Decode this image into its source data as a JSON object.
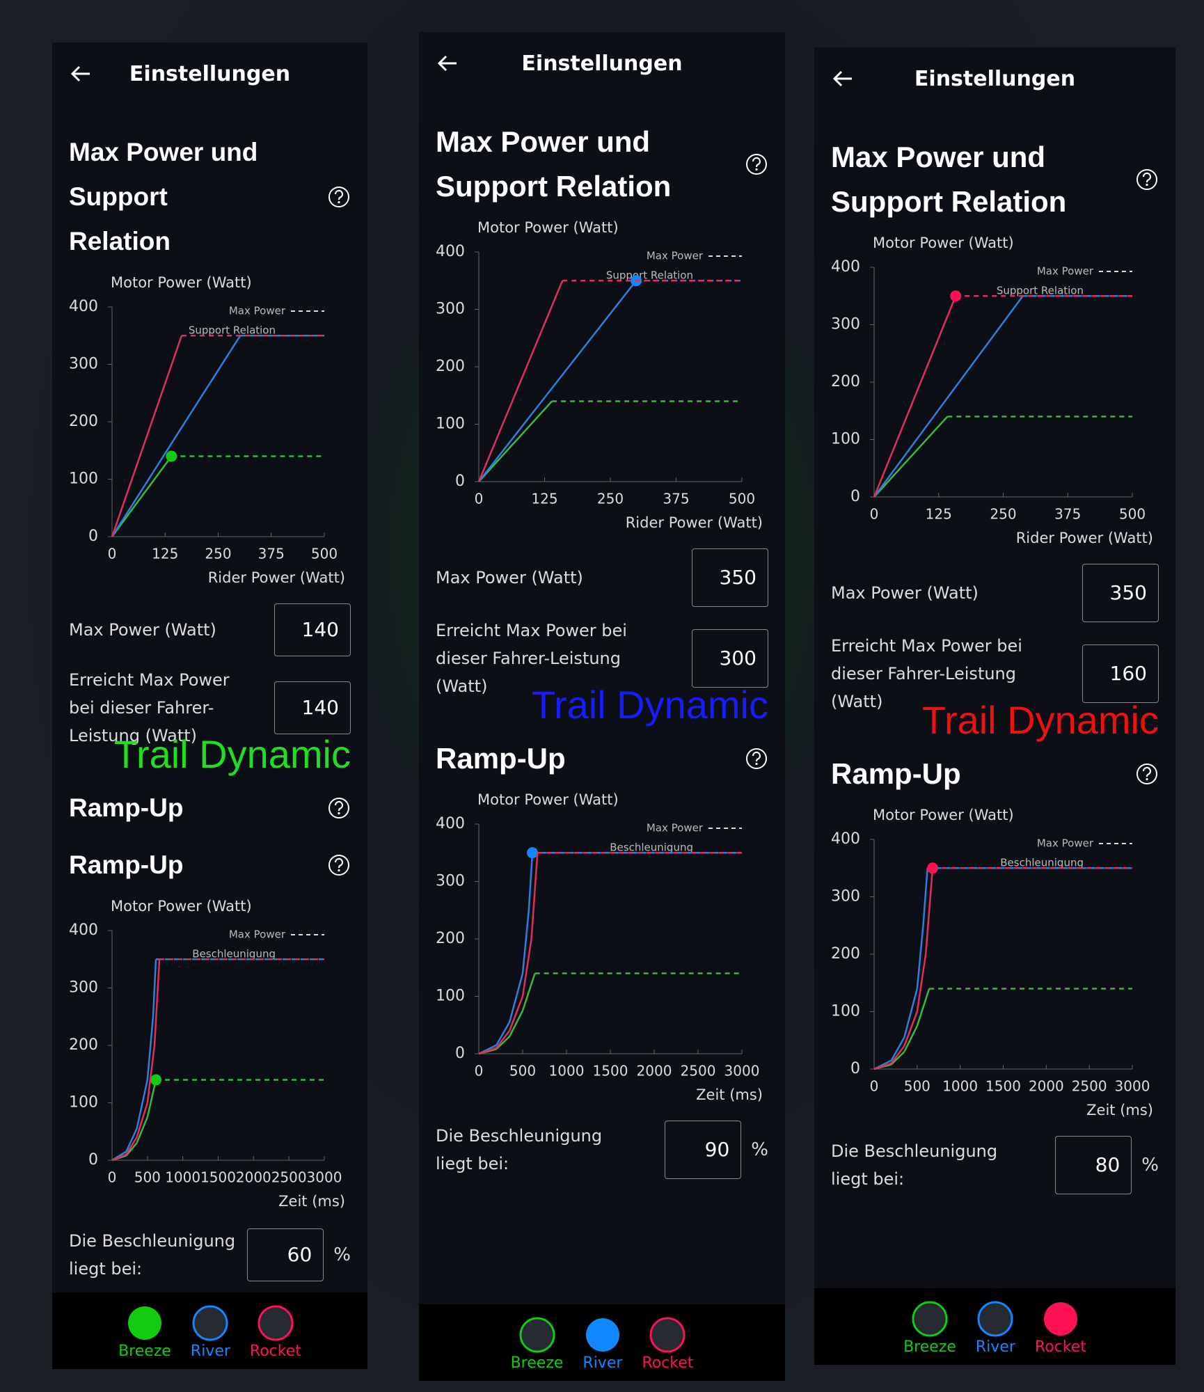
{
  "panels": [
    {
      "header": {
        "title": "Einstellungen"
      },
      "power": {
        "title": "Max Power und Support Relation",
        "chart": {
          "y_label": "Motor Power (Watt)",
          "x_label": "Rider Power (Watt)",
          "yticks": [
            0,
            100,
            200,
            300,
            400
          ],
          "xticks": [
            0,
            125,
            250,
            375,
            500
          ],
          "legend": [
            "Max Power",
            "Support Relation"
          ],
          "series": [
            {
              "color": "#3cb83c",
              "x": [
                0,
                140,
                500
              ],
              "values": [
                0,
                140,
                140
              ]
            },
            {
              "color": "#2f7fe0",
              "x": [
                0,
                302,
                500
              ],
              "values": [
                0,
                350,
                350
              ]
            },
            {
              "color": "#e0305a",
              "x": [
                0,
                164,
                500
              ],
              "values": [
                0,
                350,
                350
              ]
            }
          ]
        },
        "fields": [
          {
            "label": "Max Power (Watt)",
            "value": 140
          },
          {
            "label": "Erreicht Max Power bei dieser Fahrer-Leistung (Watt)",
            "value": 140
          }
        ]
      },
      "overlay": {
        "text": "Trail Dynamic",
        "color": "#22dd22"
      },
      "ramp": {
        "titles": [
          "Ramp-Up",
          "Ramp-Up"
        ],
        "chart": {
          "y_label": "Motor Power (Watt)",
          "x_label": "Zeit (ms)",
          "yticks": [
            0,
            100,
            200,
            300,
            400
          ],
          "xticks": [
            0,
            500,
            1000,
            1500,
            2000,
            2500,
            3000
          ],
          "legend": [
            "Max Power",
            "Beschleunigung"
          ],
          "series": [
            {
              "color": "#3cb83c",
              "x": [
                0,
                200,
                350,
                500,
                620,
                3000
              ],
              "values": [
                0,
                8,
                30,
                75,
                140,
                140
              ]
            },
            {
              "color": "#2f7fe0",
              "x": [
                0,
                200,
                350,
                500,
                580,
                620,
                3000
              ],
              "values": [
                0,
                15,
                55,
                140,
                250,
                350,
                350
              ]
            },
            {
              "color": "#e0305a",
              "x": [
                0,
                200,
                350,
                500,
                600,
                670,
                3000
              ],
              "values": [
                0,
                10,
                40,
                100,
                200,
                350,
                350
              ]
            }
          ]
        },
        "field": {
          "label": "Die Beschleunigung liegt bei:",
          "value": 60,
          "unit": "%"
        }
      },
      "modes": [
        {
          "name": "Breeze",
          "color": "#11cc11"
        },
        {
          "name": "River",
          "color": "#1188ff"
        },
        {
          "name": "Rocket",
          "color": "#ff1155"
        }
      ],
      "selected": 0
    },
    {
      "header": {
        "title": "Einstellungen"
      },
      "power": {
        "title": "Max Power und Support Relation",
        "chart": {
          "y_label": "Motor Power (Watt)",
          "x_label": "Rider Power (Watt)",
          "yticks": [
            0,
            100,
            200,
            300,
            400
          ],
          "xticks": [
            0,
            125,
            250,
            375,
            500
          ],
          "legend": [
            "Max Power",
            "Support Relation"
          ],
          "series": [
            {
              "color": "#3cb83c",
              "x": [
                0,
                139,
                500
              ],
              "values": [
                0,
                140,
                140
              ]
            },
            {
              "color": "#2f7fe0",
              "x": [
                0,
                299,
                500
              ],
              "values": [
                0,
                350,
                350
              ]
            },
            {
              "color": "#e0305a",
              "x": [
                0,
                159,
                500
              ],
              "values": [
                0,
                350,
                350
              ]
            }
          ]
        },
        "fields": [
          {
            "label": "Max Power (Watt)",
            "value": 350
          },
          {
            "label": "Erreicht Max Power bei dieser Fahrer-Leistung (Watt)",
            "value": 300
          }
        ]
      },
      "overlay": {
        "text": "Trail Dynamic",
        "color": "#1a1aff"
      },
      "ramp": {
        "titles": [
          "Ramp-Up"
        ],
        "chart": {
          "y_label": "Motor Power (Watt)",
          "x_label": "Zeit (ms)",
          "yticks": [
            0,
            100,
            200,
            300,
            400
          ],
          "xticks": [
            0,
            500,
            1000,
            1500,
            2000,
            2500,
            3000
          ],
          "legend": [
            "Max Power",
            "Beschleunigung"
          ],
          "series": [
            {
              "color": "#3cb83c",
              "x": [
                0,
                200,
                350,
                500,
                640,
                3000
              ],
              "values": [
                0,
                8,
                30,
                75,
                140,
                140
              ]
            },
            {
              "color": "#2f7fe0",
              "x": [
                0,
                200,
                350,
                500,
                570,
                611,
                3000
              ],
              "values": [
                0,
                15,
                55,
                140,
                250,
                350,
                350
              ]
            },
            {
              "color": "#e0305a",
              "x": [
                0,
                200,
                350,
                500,
                600,
                669,
                3000
              ],
              "values": [
                0,
                10,
                40,
                100,
                200,
                350,
                350
              ]
            }
          ]
        },
        "field": {
          "label": "Die Beschleunigung liegt bei:",
          "value": 90,
          "unit": "%"
        }
      },
      "modes": [
        {
          "name": "Breeze",
          "color": "#11cc11"
        },
        {
          "name": "River",
          "color": "#1188ff"
        },
        {
          "name": "Rocket",
          "color": "#ff1155"
        }
      ],
      "selected": 1
    },
    {
      "header": {
        "title": "Einstellungen"
      },
      "power": {
        "title": "Max Power und Support Relation",
        "chart": {
          "y_label": "Motor Power (Watt)",
          "x_label": "Rider Power (Watt)",
          "yticks": [
            0,
            100,
            200,
            300,
            400
          ],
          "xticks": [
            0,
            125,
            250,
            375,
            500
          ],
          "legend": [
            "Max Power",
            "Support Relation"
          ],
          "series": [
            {
              "color": "#3cb83c",
              "x": [
                0,
                142,
                500
              ],
              "values": [
                0,
                140,
                140
              ]
            },
            {
              "color": "#2f7fe0",
              "x": [
                0,
                288,
                500
              ],
              "values": [
                0,
                350,
                350
              ]
            },
            {
              "color": "#e0305a",
              "x": [
                0,
                158,
                500
              ],
              "values": [
                0,
                350,
                350
              ]
            }
          ]
        },
        "fields": [
          {
            "label": "Max Power (Watt)",
            "value": 350
          },
          {
            "label": "Erreicht Max Power bei dieser Fahrer-Leistung (Watt)",
            "value": 160
          }
        ]
      },
      "overlay": {
        "text": "Trail Dynamic",
        "color": "#ee1111"
      },
      "ramp": {
        "titles": [
          "Ramp-Up"
        ],
        "chart": {
          "y_label": "Motor Power (Watt)",
          "x_label": "Zeit (ms)",
          "yticks": [
            0,
            100,
            200,
            300,
            400
          ],
          "xticks": [
            0,
            500,
            1000,
            1500,
            2000,
            2500,
            3000
          ],
          "legend": [
            "Max Power",
            "Beschleunigung"
          ],
          "series": [
            {
              "color": "#3cb83c",
              "x": [
                0,
                200,
                350,
                500,
                640,
                3000
              ],
              "values": [
                0,
                8,
                30,
                75,
                140,
                140
              ]
            },
            {
              "color": "#2f7fe0",
              "x": [
                0,
                200,
                350,
                500,
                570,
                620,
                3000
              ],
              "values": [
                0,
                15,
                55,
                140,
                250,
                350,
                350
              ]
            },
            {
              "color": "#e0305a",
              "x": [
                0,
                200,
                350,
                500,
                600,
                680,
                3000
              ],
              "values": [
                0,
                10,
                40,
                100,
                200,
                350,
                350
              ]
            }
          ]
        },
        "field": {
          "label": "Die Beschleunigung liegt bei:",
          "value": 80,
          "unit": "%"
        }
      },
      "modes": [
        {
          "name": "Breeze",
          "color": "#11cc11"
        },
        {
          "name": "River",
          "color": "#1188ff"
        },
        {
          "name": "Rocket",
          "color": "#ff1155"
        }
      ],
      "selected": 2
    }
  ]
}
